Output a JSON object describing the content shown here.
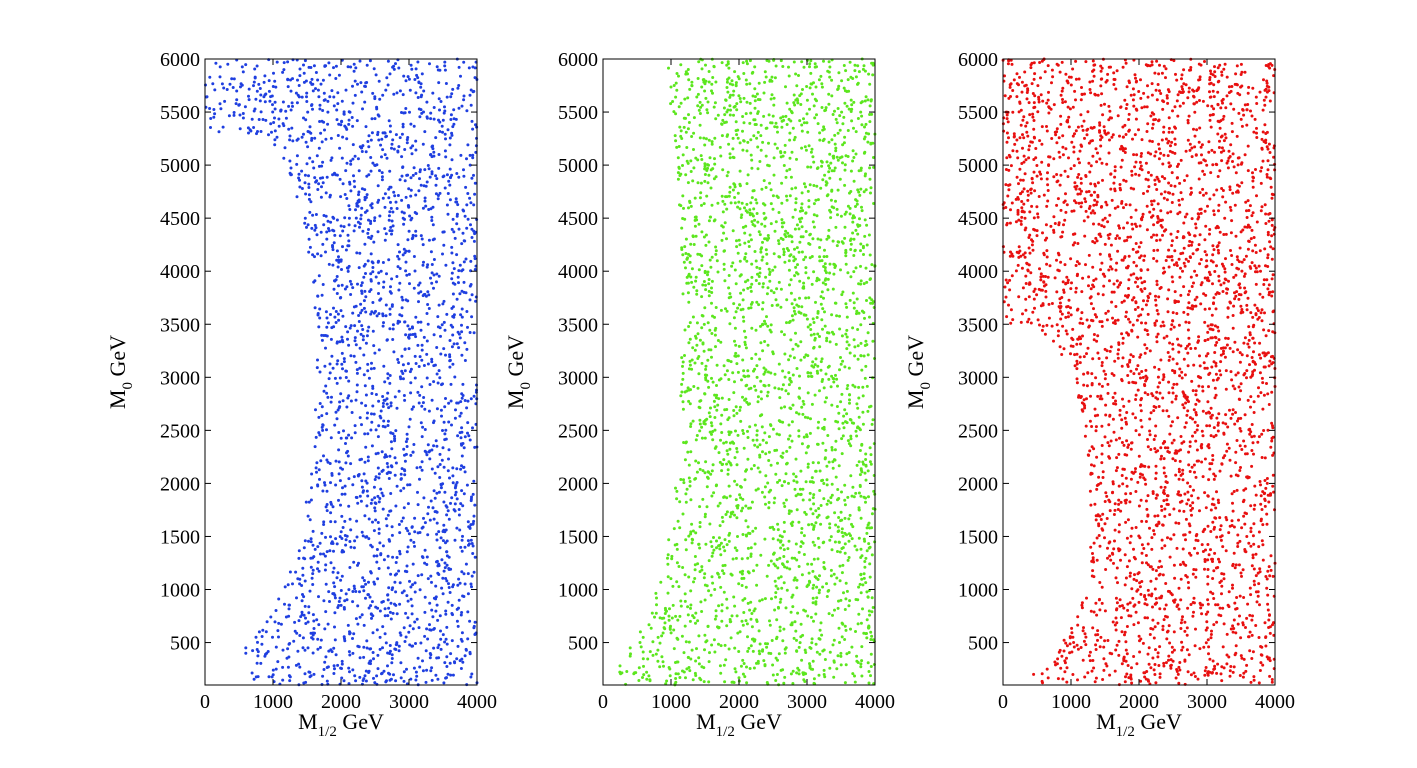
{
  "figure": {
    "panel_count": 3
  },
  "chart_data": [
    {
      "type": "scatter",
      "title": "",
      "xlabel": {
        "main": "M",
        "sub": "1/2",
        "unit": "GeV"
      },
      "ylabel": {
        "main": "M",
        "sub": "0",
        "unit": "GeV"
      },
      "xlim": [
        0,
        4000
      ],
      "ylim": [
        100,
        6000
      ],
      "xticks": [
        0,
        1000,
        2000,
        3000,
        4000
      ],
      "yticks": [
        500,
        1000,
        1500,
        2000,
        2500,
        3000,
        3500,
        4000,
        4500,
        5000,
        5500,
        6000
      ],
      "xtick_labels": [
        "0",
        "1000",
        "2000",
        "3000",
        "4000"
      ],
      "ytick_labels": [
        "500",
        "1000",
        "1500",
        "2000",
        "2500",
        "3000",
        "3500",
        "4000",
        "4500",
        "5000",
        "5500",
        "6000"
      ],
      "grid": false,
      "color": "#1f3fe0",
      "excluded_boundary": [
        [
          0,
          4500
        ],
        [
          150,
          5000
        ],
        [
          400,
          5200
        ],
        [
          700,
          5300
        ],
        [
          1100,
          5150
        ],
        [
          1300,
          4800
        ],
        [
          1500,
          4300
        ],
        [
          1600,
          3800
        ],
        [
          1650,
          3000
        ],
        [
          1550,
          2100
        ],
        [
          1400,
          1500
        ],
        [
          1200,
          1050
        ],
        [
          900,
          700
        ],
        [
          700,
          450
        ],
        [
          600,
          100
        ]
      ],
      "notable_points": [
        [
          600,
          450
        ],
        [
          600,
          400
        ],
        [
          750,
          550
        ],
        [
          800,
          600
        ]
      ],
      "point_count_estimate": 2400
    },
    {
      "type": "scatter",
      "title": "",
      "xlabel": {
        "main": "M",
        "sub": "1/2",
        "unit": "GeV"
      },
      "ylabel": {
        "main": "M",
        "sub": "0",
        "unit": "GeV"
      },
      "xlim": [
        0,
        4000
      ],
      "ylim": [
        100,
        6000
      ],
      "xticks": [
        0,
        1000,
        2000,
        3000,
        4000
      ],
      "yticks": [
        500,
        1000,
        1500,
        2000,
        2500,
        3000,
        3500,
        4000,
        4500,
        5000,
        5500,
        6000
      ],
      "xtick_labels": [
        "0",
        "1000",
        "2000",
        "3000",
        "4000"
      ],
      "ytick_labels": [
        "500",
        "1000",
        "1500",
        "2000",
        "2500",
        "3000",
        "3500",
        "4000",
        "4500",
        "5000",
        "5500",
        "6000"
      ],
      "grid": false,
      "color": "#5ce61e",
      "excluded_boundary": [
        [
          0,
          6000
        ],
        [
          900,
          6000
        ],
        [
          1100,
          5000
        ],
        [
          1150,
          4000
        ],
        [
          1150,
          3000
        ],
        [
          1100,
          2200
        ],
        [
          1000,
          1600
        ],
        [
          800,
          1000
        ],
        [
          500,
          500
        ],
        [
          250,
          250
        ],
        [
          0,
          100
        ]
      ],
      "notable_points": [
        [
          250,
          280
        ],
        [
          400,
          450
        ],
        [
          550,
          600
        ]
      ],
      "point_count_estimate": 2700
    },
    {
      "type": "scatter",
      "title": "",
      "xlabel": {
        "main": "M",
        "sub": "1/2",
        "unit": "GeV"
      },
      "ylabel": {
        "main": "M",
        "sub": "0",
        "unit": "GeV"
      },
      "xlim": [
        0,
        4000
      ],
      "ylim": [
        100,
        6000
      ],
      "xticks": [
        0,
        1000,
        2000,
        3000,
        4000
      ],
      "yticks": [
        500,
        1000,
        1500,
        2000,
        2500,
        3000,
        3500,
        4000,
        4500,
        5000,
        5500,
        6000
      ],
      "xtick_labels": [
        "0",
        "1000",
        "2000",
        "3000",
        "4000"
      ],
      "ytick_labels": [
        "500",
        "1000",
        "1500",
        "2000",
        "2500",
        "3000",
        "3500",
        "4000",
        "4500",
        "5000",
        "5500",
        "6000"
      ],
      "grid": false,
      "color": "#e81010",
      "excluded_boundary": [
        [
          0,
          3000
        ],
        [
          100,
          3400
        ],
        [
          400,
          3500
        ],
        [
          800,
          3300
        ],
        [
          1100,
          2800
        ],
        [
          1250,
          2200
        ],
        [
          1300,
          1600
        ],
        [
          1250,
          1100
        ],
        [
          1050,
          700
        ],
        [
          750,
          350
        ],
        [
          400,
          100
        ]
      ],
      "notable_points": [
        [
          450,
          200
        ],
        [
          650,
          250
        ],
        [
          800,
          300
        ]
      ],
      "point_count_estimate": 3200
    }
  ]
}
